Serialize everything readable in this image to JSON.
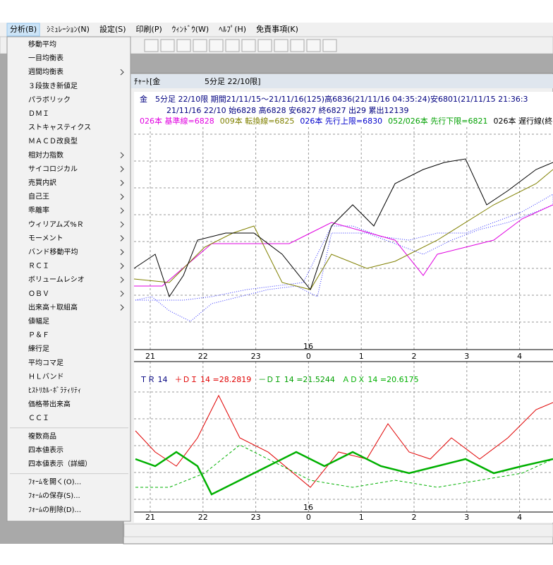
{
  "menubar": [
    "分析(B)",
    "ｼﾐｭﾚｰｼｮﾝ(N)",
    "設定(S)",
    "印刷(P)",
    "ｳｨﾝﾄﾞｳ(W)",
    "ﾍﾙﾌﾟ(H)",
    "免責事項(K)"
  ],
  "menu": {
    "sections": [
      [
        {
          "label": "移動平均",
          "submenu": false
        },
        {
          "label": "一目均衡表",
          "submenu": false
        },
        {
          "label": "週間均衡表",
          "submenu": true
        },
        {
          "label": "３段抜き新値足",
          "submenu": false
        },
        {
          "label": "パラボリック",
          "submenu": false
        },
        {
          "label": "ＤＭＩ",
          "submenu": false
        },
        {
          "label": "ストキャスティクス",
          "submenu": false
        },
        {
          "label": "ＭＡＣＤ改良型",
          "submenu": false
        },
        {
          "label": "相対力指数",
          "submenu": true
        },
        {
          "label": "サイコロジカル",
          "submenu": true
        },
        {
          "label": "売買内訳",
          "submenu": true
        },
        {
          "label": "自己王",
          "submenu": true
        },
        {
          "label": "乖離率",
          "submenu": true
        },
        {
          "label": "ウィリアムズ%Ｒ",
          "submenu": true
        },
        {
          "label": "モーメント",
          "submenu": true
        },
        {
          "label": "バンド移動平均",
          "submenu": true
        },
        {
          "label": "ＲＣＩ",
          "submenu": true
        },
        {
          "label": "ボリュームレシオ",
          "submenu": true
        },
        {
          "label": "ＯＢＶ",
          "submenu": true
        },
        {
          "label": "出来高＋取組高",
          "submenu": true
        },
        {
          "label": "値幅足",
          "submenu": false
        },
        {
          "label": "Ｐ＆Ｆ",
          "submenu": false
        },
        {
          "label": "練行足",
          "submenu": false
        },
        {
          "label": "平均コマ足",
          "submenu": false
        },
        {
          "label": "ＨＬバンド",
          "submenu": false
        },
        {
          "label": "ﾋｽﾄﾘｶﾙ･ﾎﾞﾗﾃｨﾘﾃｨ",
          "submenu": false
        },
        {
          "label": "価格帯出来高",
          "submenu": false
        },
        {
          "label": "ＣＣＩ",
          "submenu": false
        }
      ],
      [
        {
          "label": "複数商品",
          "submenu": false
        },
        {
          "label": "四本値表示",
          "submenu": false
        },
        {
          "label": "四本値表示（詳細）",
          "submenu": false
        }
      ],
      [
        {
          "label": "ﾌｫｰﾑを開く(O)...",
          "submenu": false
        },
        {
          "label": "ﾌｫｰﾑの保存(S)...",
          "submenu": false
        },
        {
          "label": "ﾌｫｰﾑの削除(D)...",
          "submenu": false
        }
      ]
    ]
  },
  "chart_window": {
    "title": "ﾁｬｰﾄ[金",
    "subtitle": "5分足 22/10限]",
    "info_line1": "金　5分足 22/10限 期間21/11/15～21/11/16(125)高6836(21/11/16 04:35:24)安6801(21/11/15 21:36:3",
    "info_line2": "21/11/16 22/10 始6828 高6828 安6827 終6827 出29 累出12139",
    "indicators": [
      {
        "text": "026本 基準線=6828",
        "color": "#e000e0"
      },
      {
        "text": "009本 転換線=6825",
        "color": "#808000"
      },
      {
        "text": "026本 先行上限=6830",
        "color": "#0000cc"
      },
      {
        "text": "052/026本 先行下限=6821",
        "color": "#00a000"
      },
      {
        "text": "026本 遅行線(終",
        "color": "#000000"
      }
    ],
    "x_labels": [
      "21",
      "22",
      "23",
      "0",
      "1",
      "2",
      "3",
      "4"
    ],
    "date_marker": "16",
    "lower_legend": [
      {
        "text": "ＴＲ 14",
        "color": "#000080"
      },
      {
        "text": "＋ＤＩ 14 =28.2819",
        "color": "#e00000"
      },
      {
        "text": "－ＤＩ 14 =21.5244",
        "color": "#00a000"
      },
      {
        "text": "ＡＤＸ 14 =20.6175",
        "color": "#00b000"
      }
    ]
  }
}
